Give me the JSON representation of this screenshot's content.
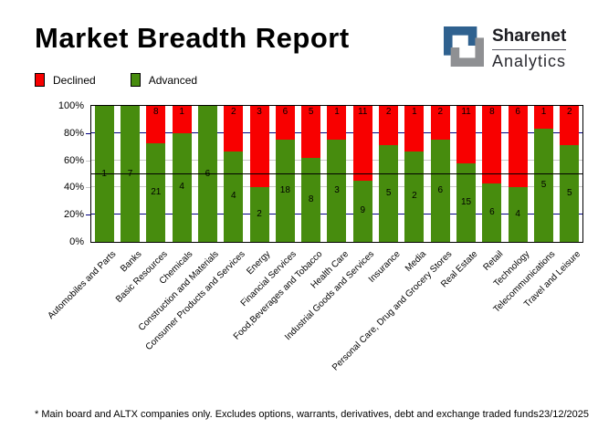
{
  "header": {
    "title": "Market Breadth Report"
  },
  "logo": {
    "brand_top": "Sharenet",
    "brand_bottom": "Analytics",
    "mark_blue": "#2f618f",
    "mark_gray": "#8f9093"
  },
  "legend": {
    "declined_label": "Declined",
    "advanced_label": "Advanced"
  },
  "colors": {
    "declined": "#f80000",
    "advanced": "#478c0e",
    "grid_major": "#000080",
    "grid_minor": "#c8c8c8",
    "midline": "#000000"
  },
  "chart_data": {
    "type": "bar",
    "stacked": true,
    "unit": "percent of companies (advanced vs declined), labels show counts",
    "categories": [
      "Automobiles and Parts",
      "Banks",
      "Basic Resources",
      "Chemicals",
      "Construction and Materials",
      "Consumer Products and Services",
      "Energy",
      "Financial Services",
      "Food,Beverages and Tobacco",
      "Health Care",
      "Industrial Goods and Services",
      "Insurance",
      "Media",
      "Personal Care, Drug and Grocery Stores",
      "Real Estate",
      "Retail",
      "Technology",
      "Telecommunications",
      "Travel and Leisure"
    ],
    "series": [
      {
        "name": "Advanced",
        "color": "#478c0e",
        "values": [
          1,
          7,
          21,
          4,
          6,
          4,
          2,
          18,
          8,
          3,
          9,
          5,
          2,
          6,
          15,
          6,
          4,
          5,
          5
        ]
      },
      {
        "name": "Declined",
        "color": "#f80000",
        "values": [
          0,
          0,
          8,
          1,
          0,
          2,
          3,
          6,
          5,
          1,
          11,
          2,
          1,
          2,
          11,
          8,
          6,
          1,
          2
        ]
      }
    ],
    "y_ticks": [
      "0%",
      "20%",
      "40%",
      "60%",
      "80%",
      "100%"
    ],
    "ylim": [
      0,
      100
    ],
    "midline": 50,
    "grid": true,
    "legend_position": "top-left"
  },
  "footer": {
    "note": "* Main board and ALTX companies only. Excludes options, warrants, derivatives, debt and exchange traded funds",
    "date": "23/12/2025"
  }
}
